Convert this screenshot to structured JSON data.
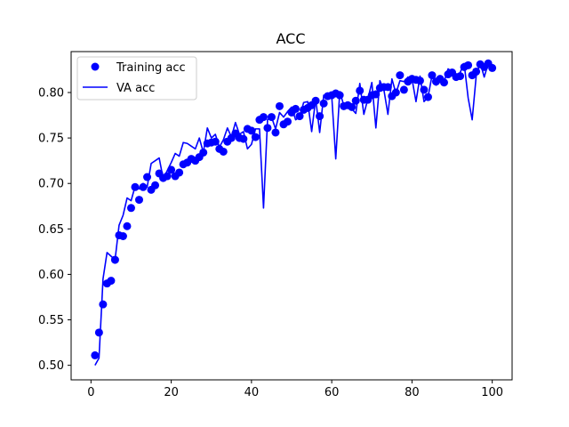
{
  "chart_data": {
    "type": "line",
    "title": "ACC",
    "xlabel": "",
    "ylabel": "",
    "xlim": [
      -4.95,
      104.95
    ],
    "ylim": [
      0.484,
      0.845
    ],
    "xticks": [
      0,
      20,
      40,
      60,
      80,
      100
    ],
    "yticks": [
      0.5,
      0.55,
      0.6,
      0.65,
      0.7,
      0.75,
      0.8
    ],
    "ytick_labels": [
      "0.50",
      "0.55",
      "0.60",
      "0.65",
      "0.70",
      "0.75",
      "0.80"
    ],
    "grid": false,
    "legend_position": "top-left",
    "color": "#0000ff",
    "series": [
      {
        "name": "Training acc",
        "style": "markers",
        "x": [
          1,
          2,
          3,
          4,
          5,
          6,
          7,
          8,
          9,
          10,
          11,
          12,
          13,
          14,
          15,
          16,
          17,
          18,
          19,
          20,
          21,
          22,
          23,
          24,
          25,
          26,
          27,
          28,
          29,
          30,
          31,
          32,
          33,
          34,
          35,
          36,
          37,
          38,
          39,
          40,
          41,
          42,
          43,
          44,
          45,
          46,
          47,
          48,
          49,
          50,
          51,
          52,
          53,
          54,
          55,
          56,
          57,
          58,
          59,
          60,
          61,
          62,
          63,
          64,
          65,
          66,
          67,
          68,
          69,
          70,
          71,
          72,
          73,
          74,
          75,
          76,
          77,
          78,
          79,
          80,
          81,
          82,
          83,
          84,
          85,
          86,
          87,
          88,
          89,
          90,
          91,
          92,
          93,
          94,
          95,
          96,
          97,
          98,
          99,
          100
        ],
        "values": [
          0.511,
          0.536,
          0.567,
          0.59,
          0.593,
          0.616,
          0.643,
          0.642,
          0.653,
          0.673,
          0.696,
          0.682,
          0.696,
          0.707,
          0.693,
          0.698,
          0.711,
          0.706,
          0.708,
          0.715,
          0.708,
          0.712,
          0.721,
          0.723,
          0.727,
          0.725,
          0.729,
          0.734,
          0.744,
          0.745,
          0.746,
          0.738,
          0.735,
          0.746,
          0.75,
          0.755,
          0.75,
          0.749,
          0.76,
          0.758,
          0.751,
          0.77,
          0.773,
          0.761,
          0.773,
          0.756,
          0.785,
          0.765,
          0.768,
          0.778,
          0.782,
          0.774,
          0.781,
          0.783,
          0.786,
          0.791,
          0.774,
          0.788,
          0.796,
          0.797,
          0.799,
          0.797,
          0.785,
          0.786,
          0.784,
          0.791,
          0.802,
          0.792,
          0.792,
          0.797,
          0.798,
          0.805,
          0.806,
          0.806,
          0.796,
          0.8,
          0.819,
          0.803,
          0.812,
          0.815,
          0.814,
          0.813,
          0.803,
          0.795,
          0.819,
          0.812,
          0.815,
          0.811,
          0.82,
          0.822,
          0.817,
          0.818,
          0.828,
          0.83,
          0.819,
          0.823,
          0.831,
          0.828,
          0.832,
          0.827
        ]
      },
      {
        "name": "VA acc",
        "style": "line",
        "x": [
          1,
          2,
          3,
          4,
          5,
          6,
          7,
          8,
          9,
          10,
          11,
          12,
          13,
          14,
          15,
          16,
          17,
          18,
          19,
          20,
          21,
          22,
          23,
          24,
          25,
          26,
          27,
          28,
          29,
          30,
          31,
          32,
          33,
          34,
          35,
          36,
          37,
          38,
          39,
          40,
          41,
          42,
          43,
          44,
          45,
          46,
          47,
          48,
          49,
          50,
          51,
          52,
          53,
          54,
          55,
          56,
          57,
          58,
          59,
          60,
          61,
          62,
          63,
          64,
          65,
          66,
          67,
          68,
          69,
          70,
          71,
          72,
          73,
          74,
          75,
          76,
          77,
          78,
          79,
          80,
          81,
          82,
          83,
          84,
          85,
          86,
          87,
          88,
          89,
          90,
          91,
          92,
          93,
          94,
          95,
          96,
          97,
          98,
          99,
          100
        ],
        "values": [
          0.5,
          0.508,
          0.595,
          0.624,
          0.62,
          0.616,
          0.654,
          0.665,
          0.684,
          0.681,
          0.697,
          0.694,
          0.7,
          0.696,
          0.722,
          0.725,
          0.728,
          0.705,
          0.714,
          0.723,
          0.733,
          0.73,
          0.745,
          0.744,
          0.741,
          0.738,
          0.75,
          0.734,
          0.761,
          0.75,
          0.754,
          0.74,
          0.748,
          0.761,
          0.751,
          0.767,
          0.754,
          0.757,
          0.738,
          0.743,
          0.76,
          0.76,
          0.673,
          0.77,
          0.773,
          0.76,
          0.778,
          0.773,
          0.779,
          0.784,
          0.77,
          0.773,
          0.789,
          0.79,
          0.757,
          0.793,
          0.756,
          0.797,
          0.795,
          0.796,
          0.727,
          0.801,
          0.786,
          0.784,
          0.782,
          0.777,
          0.81,
          0.776,
          0.793,
          0.811,
          0.761,
          0.813,
          0.803,
          0.776,
          0.815,
          0.799,
          0.813,
          0.812,
          0.817,
          0.815,
          0.79,
          0.818,
          0.79,
          0.795,
          0.819,
          0.808,
          0.818,
          0.812,
          0.826,
          0.823,
          0.817,
          0.822,
          0.832,
          0.794,
          0.77,
          0.818,
          0.833,
          0.817,
          0.832,
          0.828
        ]
      }
    ]
  }
}
